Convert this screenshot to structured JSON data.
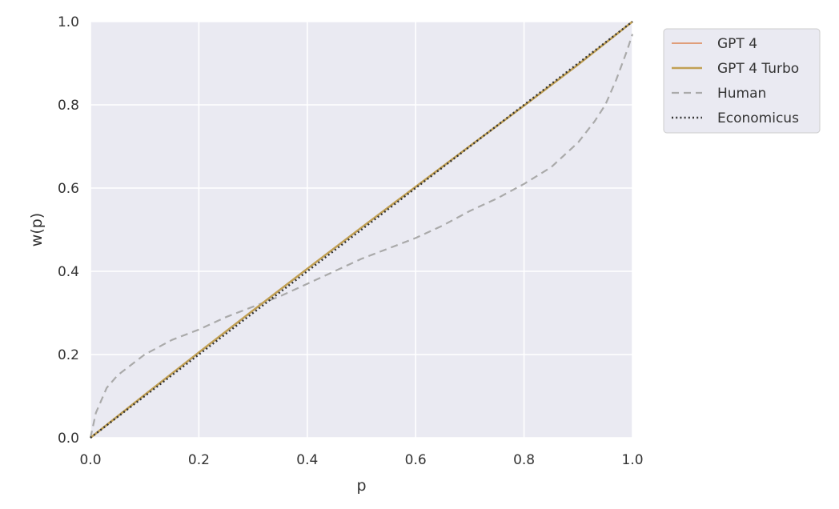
{
  "chart_data": {
    "type": "line",
    "title": "",
    "xlabel": "p",
    "ylabel": "w(p)",
    "xlim": [
      0.0,
      1.0
    ],
    "ylim": [
      0.0,
      1.0
    ],
    "xticks": [
      "0.0",
      "0.2",
      "0.4",
      "0.6",
      "0.8",
      "1.0"
    ],
    "yticks": [
      "0.0",
      "0.2",
      "0.4",
      "0.6",
      "0.8",
      "1.0"
    ],
    "grid": true,
    "legend_position": "outside-top-right",
    "background": "#eaeaf2",
    "series": [
      {
        "name": "GPT 4",
        "style": "solid",
        "color": "#dd8452",
        "x": [
          0.0,
          0.1,
          0.2,
          0.3,
          0.4,
          0.5,
          0.6,
          0.7,
          0.8,
          0.9,
          1.0
        ],
        "y": [
          0.0,
          0.103,
          0.205,
          0.306,
          0.406,
          0.505,
          0.603,
          0.701,
          0.798,
          0.897,
          1.0
        ]
      },
      {
        "name": "GPT 4 Turbo",
        "style": "solid",
        "color": "#c1a054",
        "x": [
          0.0,
          0.1,
          0.2,
          0.3,
          0.4,
          0.5,
          0.6,
          0.7,
          0.8,
          0.9,
          1.0
        ],
        "y": [
          0.0,
          0.103,
          0.205,
          0.306,
          0.406,
          0.505,
          0.603,
          0.701,
          0.798,
          0.897,
          1.0
        ]
      },
      {
        "name": "Human",
        "style": "dashed",
        "color": "#aaaaaa",
        "x": [
          0.0,
          0.01,
          0.03,
          0.05,
          0.1,
          0.15,
          0.2,
          0.25,
          0.3,
          0.35,
          0.4,
          0.45,
          0.5,
          0.55,
          0.6,
          0.65,
          0.7,
          0.75,
          0.8,
          0.85,
          0.9,
          0.93,
          0.95,
          0.97,
          0.99,
          1.0
        ],
        "y": [
          0.0,
          0.06,
          0.12,
          0.15,
          0.2,
          0.235,
          0.26,
          0.29,
          0.315,
          0.34,
          0.37,
          0.4,
          0.43,
          0.455,
          0.48,
          0.51,
          0.545,
          0.575,
          0.61,
          0.65,
          0.71,
          0.76,
          0.8,
          0.86,
          0.93,
          0.97
        ]
      },
      {
        "name": "Economicus",
        "style": "dotted",
        "color": "#333333",
        "x": [
          0.0,
          1.0
        ],
        "y": [
          0.0,
          1.0
        ]
      }
    ]
  }
}
